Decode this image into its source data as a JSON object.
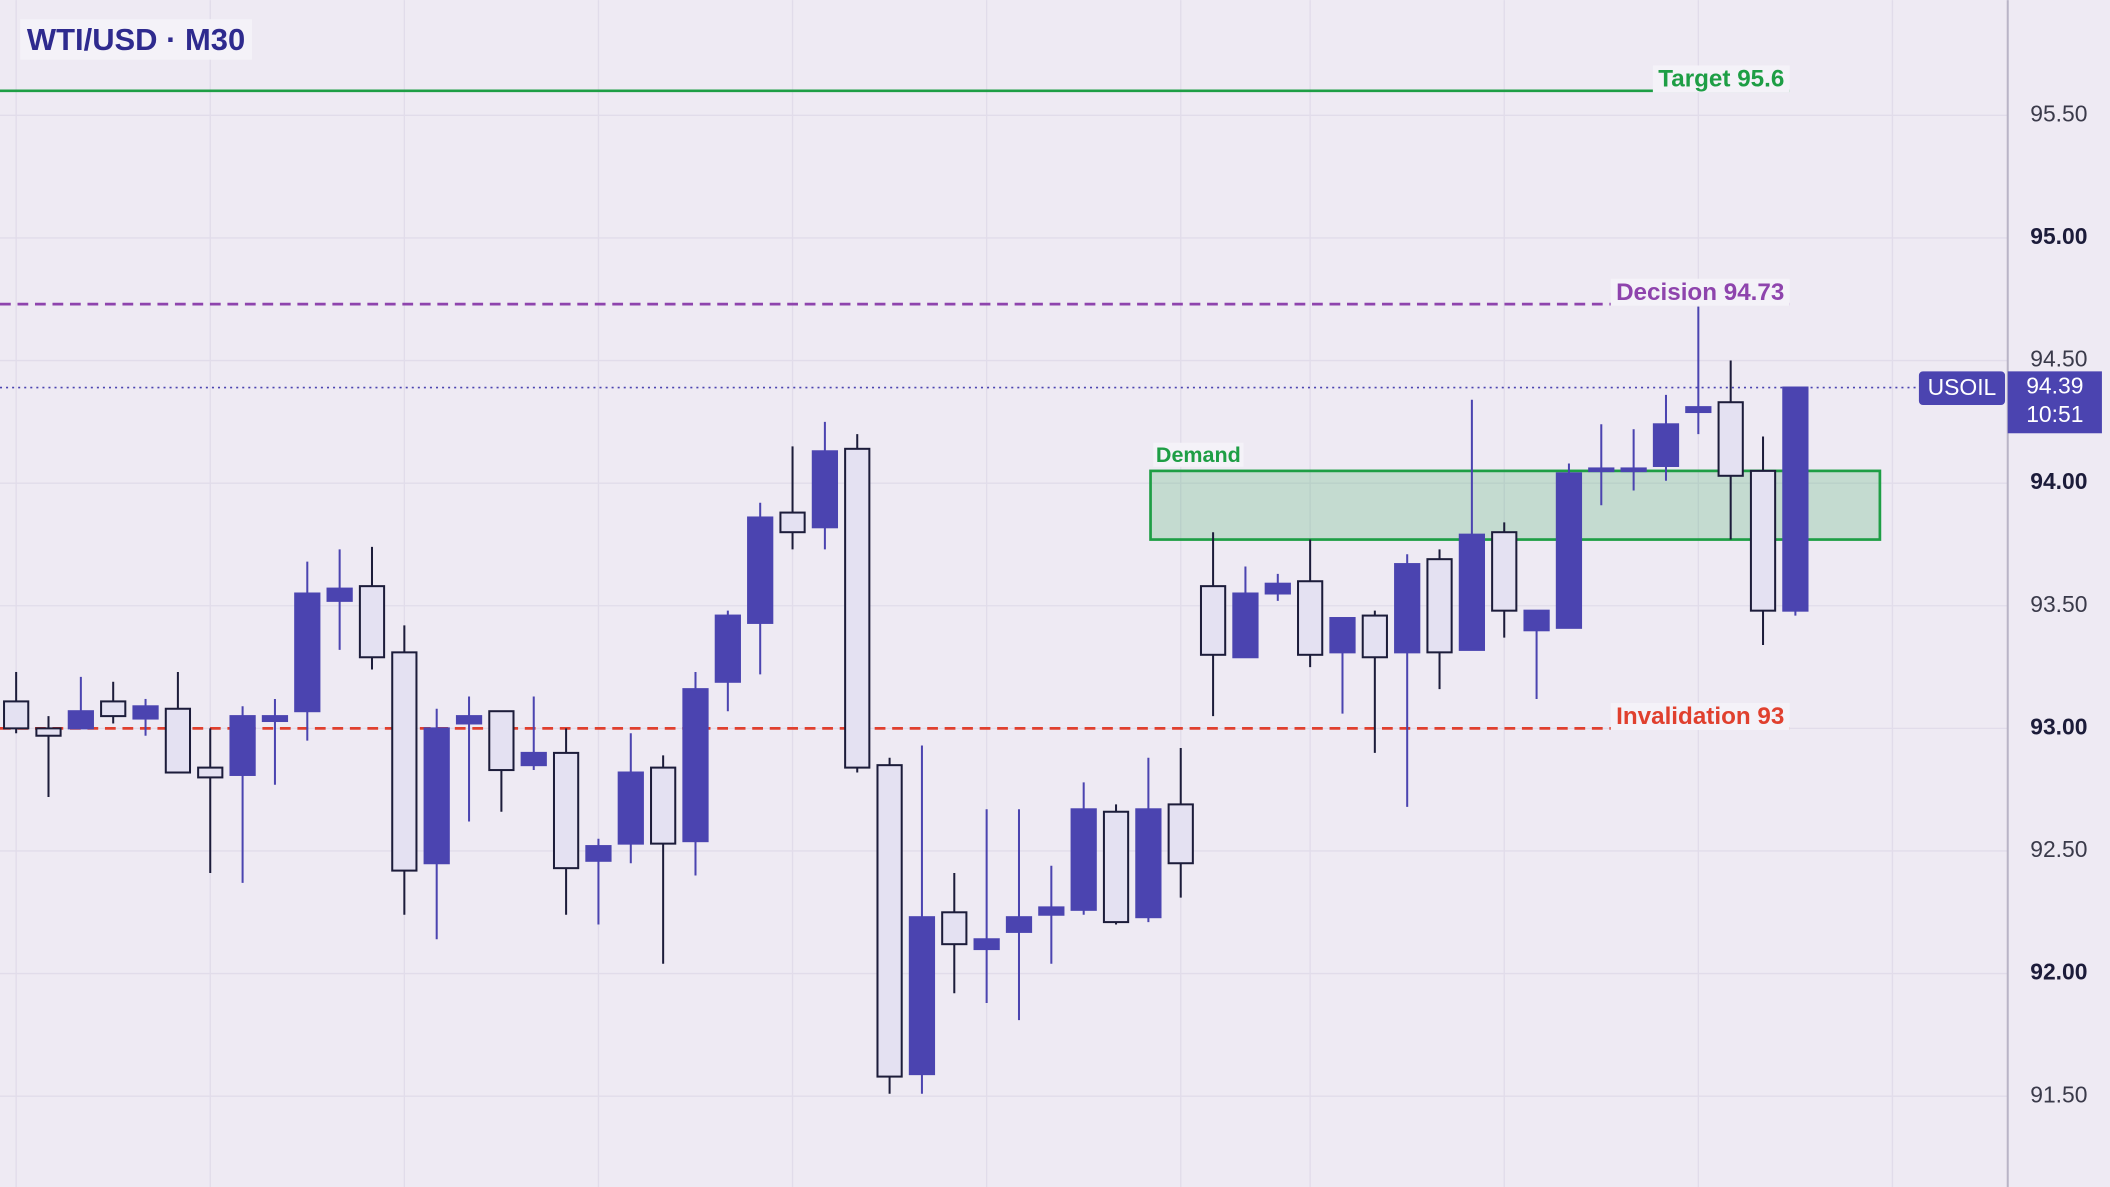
{
  "chart_data": {
    "type": "candlestick",
    "title": "WTI/USD · M30",
    "symbol": "USOIL",
    "last_price": 94.39,
    "countdown": "10:51",
    "up_color": "#4b44b0",
    "down_color": "#e4e1f2",
    "ylim": [
      91.13,
      95.97
    ],
    "yticks": [
      {
        "value": 91.5,
        "label": "91.50"
      },
      {
        "value": 92,
        "label": "92.00"
      },
      {
        "value": 92.5,
        "label": "92.50"
      },
      {
        "value": 93,
        "label": "93.00"
      },
      {
        "value": 93.5,
        "label": "93.50"
      },
      {
        "value": 94,
        "label": "94.00"
      },
      {
        "value": 94.5,
        "label": "94.50"
      },
      {
        "value": 95,
        "label": "95.00"
      },
      {
        "value": 95.5,
        "label": "95.50"
      }
    ],
    "grid": true,
    "open": [
      93.11,
      93.0,
      93.0,
      93.11,
      93.04,
      93.08,
      92.84,
      92.81,
      93.03,
      93.07,
      93.52,
      93.58,
      93.31,
      92.45,
      93.02,
      93.07,
      92.85,
      92.9,
      92.46,
      92.53,
      92.84,
      92.54,
      93.19,
      93.43,
      93.88,
      93.82,
      94.14,
      92.85,
      91.59,
      92.25,
      92.1,
      92.17,
      92.24,
      92.26,
      92.66,
      92.23,
      92.69,
      93.58,
      93.29,
      93.55,
      93.6,
      93.31,
      93.46,
      93.31,
      93.69,
      93.32,
      93.8,
      93.4,
      93.41,
      94.05,
      94.05,
      94.07,
      94.29,
      94.33,
      94.05,
      93.48
    ],
    "high": [
      93.23,
      93.05,
      93.21,
      93.19,
      93.12,
      93.23,
      93.0,
      93.09,
      93.12,
      93.68,
      93.73,
      93.74,
      93.42,
      93.08,
      93.13,
      93.07,
      93.13,
      93.0,
      92.55,
      92.98,
      92.89,
      93.23,
      93.48,
      93.92,
      94.15,
      94.25,
      94.2,
      92.88,
      92.93,
      92.41,
      92.67,
      92.67,
      92.44,
      92.78,
      92.69,
      92.88,
      92.92,
      93.8,
      93.66,
      93.63,
      93.77,
      93.45,
      93.48,
      93.71,
      93.73,
      94.34,
      93.84,
      93.48,
      94.08,
      94.24,
      94.22,
      94.36,
      94.72,
      94.5,
      94.19,
      94.39
    ],
    "low": [
      92.98,
      92.72,
      93.0,
      93.02,
      92.97,
      92.82,
      92.41,
      92.37,
      92.77,
      92.95,
      93.32,
      93.24,
      92.24,
      92.14,
      92.62,
      92.66,
      92.83,
      92.24,
      92.2,
      92.45,
      92.04,
      92.4,
      93.07,
      93.22,
      93.73,
      93.73,
      92.82,
      91.51,
      91.51,
      91.92,
      91.88,
      91.81,
      92.04,
      92.24,
      92.2,
      92.21,
      92.31,
      93.05,
      93.29,
      93.52,
      93.25,
      93.06,
      92.9,
      92.68,
      93.16,
      93.32,
      93.37,
      93.12,
      93.41,
      93.91,
      93.97,
      94.01,
      94.2,
      93.77,
      93.34,
      93.46
    ],
    "close": [
      93.0,
      92.97,
      93.07,
      93.05,
      93.09,
      92.82,
      92.8,
      93.05,
      93.05,
      93.55,
      93.57,
      93.29,
      92.42,
      93.0,
      93.05,
      92.83,
      92.9,
      92.43,
      92.52,
      92.82,
      92.53,
      93.16,
      93.46,
      93.86,
      93.8,
      94.13,
      92.84,
      91.58,
      92.23,
      92.12,
      92.14,
      92.23,
      92.27,
      92.67,
      92.21,
      92.67,
      92.45,
      93.3,
      93.55,
      93.59,
      93.3,
      93.45,
      93.29,
      93.67,
      93.31,
      93.79,
      93.48,
      93.48,
      94.04,
      94.06,
      94.06,
      94.24,
      94.31,
      94.03,
      93.48,
      94.39
    ],
    "levels": [
      {
        "label": "Target 95.6",
        "value": 95.6,
        "color": "#1e9e45",
        "style": "solid"
      },
      {
        "label": "Decision 94.73",
        "value": 94.73,
        "color": "#8e44ad",
        "style": "dashed"
      },
      {
        "label": "Invalidation 93",
        "value": 93,
        "color": "#e0402e",
        "style": "dashed"
      }
    ],
    "zone": {
      "label": "Demand",
      "low": 93.77,
      "high": 94.05,
      "color": "#1e9e45"
    }
  }
}
